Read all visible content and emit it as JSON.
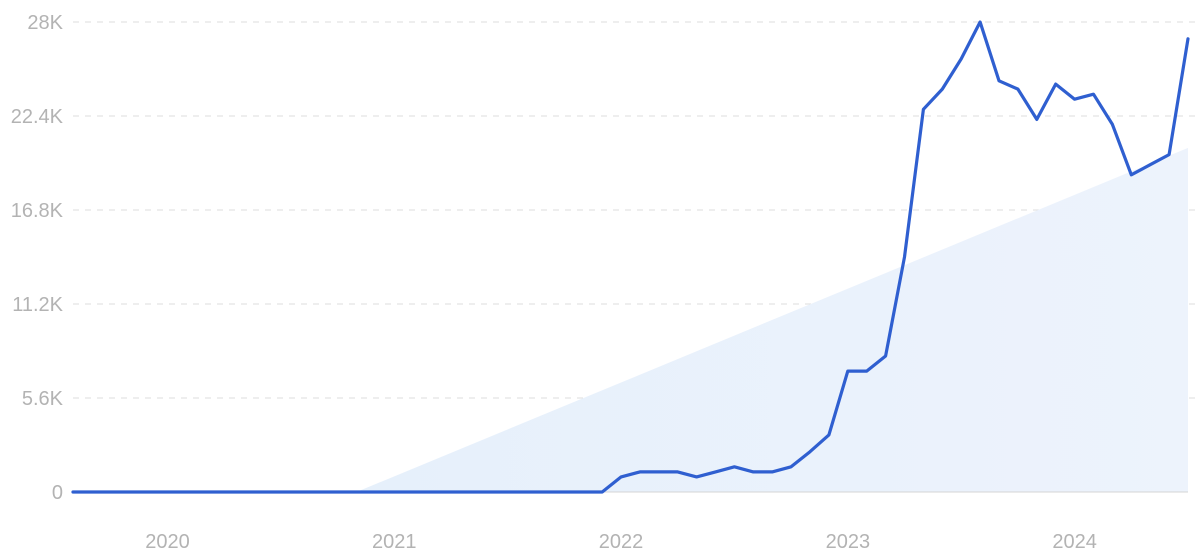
{
  "chart_data": {
    "type": "line",
    "colors": {
      "line": "#2f5fd0",
      "trend_fill_start": "#e3eefb",
      "trend_fill_end": "#eef4fc",
      "tick_text": "#b3b3b3",
      "grid": "#dedede"
    },
    "grid": true,
    "ylim": [
      0,
      28000
    ],
    "xlim": [
      "2019-08",
      "2024-07"
    ],
    "y_ticks": [
      {
        "value": 0,
        "label": "0"
      },
      {
        "value": 5600,
        "label": "5.6K"
      },
      {
        "value": 11200,
        "label": "11.2K"
      },
      {
        "value": 16800,
        "label": "16.8K"
      },
      {
        "value": 22400,
        "label": "22.4K"
      },
      {
        "value": 28000,
        "label": "28K"
      }
    ],
    "x_ticks": [
      {
        "value": "2020-01",
        "label": "2020"
      },
      {
        "value": "2021-01",
        "label": "2021"
      },
      {
        "value": "2022-01",
        "label": "2022"
      },
      {
        "value": "2023-01",
        "label": "2023"
      },
      {
        "value": "2024-01",
        "label": "2024"
      }
    ],
    "series": [
      {
        "x": [
          "2019-08",
          "2021-12",
          "2022-01",
          "2022-02",
          "2022-03",
          "2022-04",
          "2022-05",
          "2022-06",
          "2022-07",
          "2022-08",
          "2022-09",
          "2022-10",
          "2022-11",
          "2022-12",
          "2023-01",
          "2023-02",
          "2023-03",
          "2023-04",
          "2023-05",
          "2023-06",
          "2023-07",
          "2023-08",
          "2023-09",
          "2023-10",
          "2023-11",
          "2023-12",
          "2024-01",
          "2024-02",
          "2024-03",
          "2024-04",
          "2024-05",
          "2024-06",
          "2024-07"
        ],
        "y": [
          0,
          0,
          900,
          1200,
          1200,
          1200,
          900,
          1200,
          1500,
          1200,
          1200,
          1500,
          2400,
          3400,
          7200,
          7200,
          8100,
          14000,
          22800,
          24000,
          25800,
          28000,
          24500,
          24000,
          22200,
          24300,
          23400,
          23700,
          21900,
          18900,
          19500,
          20100,
          27000
        ]
      }
    ],
    "trend": {
      "x": [
        "2020-11",
        "2024-07"
      ],
      "y": [
        0,
        20500
      ]
    }
  }
}
